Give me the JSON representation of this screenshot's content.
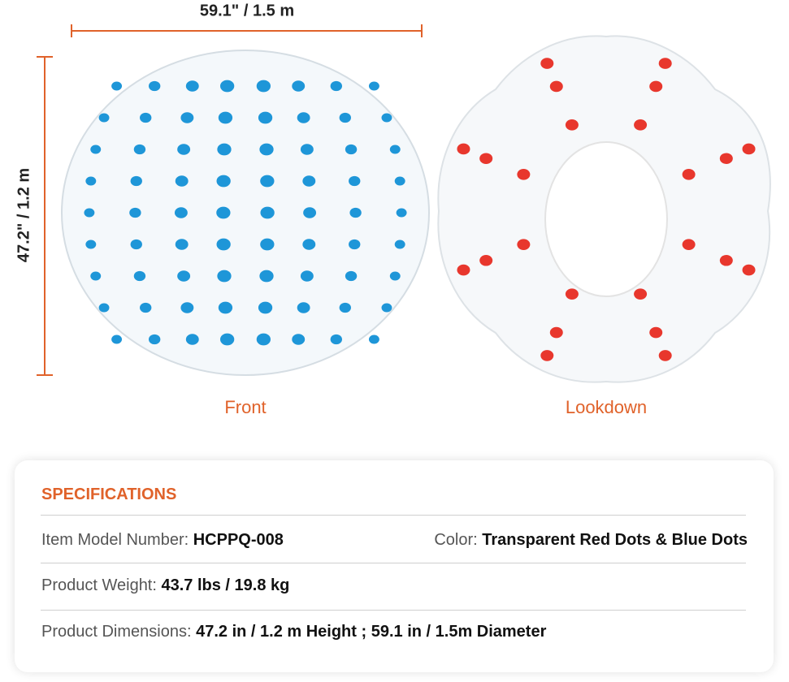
{
  "dimensions": {
    "width": "59.1\" / 1.5 m",
    "height": "47.2\" / 1.2 m"
  },
  "views": [
    "Front",
    "Lookdown"
  ],
  "specifications": {
    "title": "SPECIFICATIONS",
    "rows": [
      [
        {
          "label": "Item Model Number:",
          "value": "HCPPQ-008"
        },
        {
          "label": "Color:",
          "value": "Transparent Red Dots & Blue Dots"
        }
      ],
      [
        {
          "label": "Product Weight:",
          "value": "43.7 lbs / 19.8 kg"
        }
      ],
      [
        {
          "label": "Product Dimensions:",
          "value": "47.2 in / 1.2 m Height ; 59.1 in / 1.5m Diameter"
        }
      ]
    ]
  }
}
